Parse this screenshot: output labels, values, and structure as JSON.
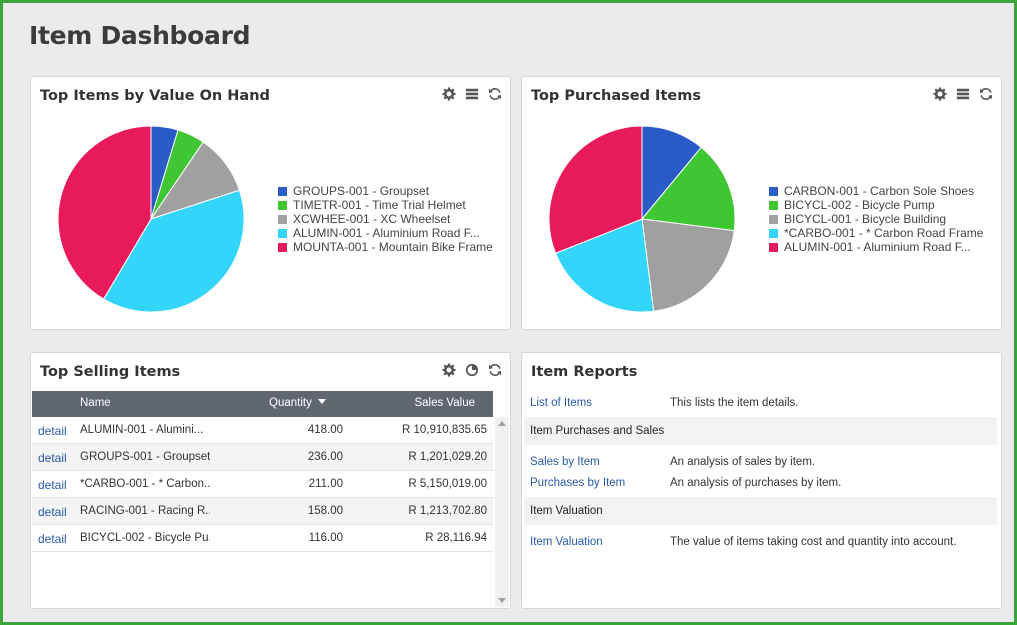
{
  "page": {
    "title": "Item Dashboard"
  },
  "panels": {
    "value_on_hand": {
      "title": "Top Items by Value On Hand",
      "legend": [
        {
          "label": "GROUPS-001 - Groupset",
          "color": "#2a5bc7"
        },
        {
          "label": "TIMETR-001 - Time Trial Helmet",
          "color": "#3ec633"
        },
        {
          "label": "XCWHEE-001 - XC Wheelset",
          "color": "#a0a0a0"
        },
        {
          "label": "ALUMIN-001 - Aluminium Road F...",
          "color": "#33d6fa"
        },
        {
          "label": "MOUNTA-001 - Mountain Bike Frame",
          "color": "#e81a5b"
        }
      ]
    },
    "purchased": {
      "title": "Top Purchased Items",
      "legend": [
        {
          "label": "CARBON-001 - Carbon Sole Shoes",
          "color": "#2a5bc7"
        },
        {
          "label": "BICYCL-002 - Bicycle Pump",
          "color": "#3ec633"
        },
        {
          "label": "BICYCL-001 - Bicycle Building",
          "color": "#a0a0a0"
        },
        {
          "label": "*CARBO-001 - * Carbon Road Frame",
          "color": "#33d6fa"
        },
        {
          "label": "ALUMIN-001 - Aluminium Road F...",
          "color": "#e81a5b"
        }
      ]
    },
    "selling": {
      "title": "Top Selling Items",
      "columns": {
        "name": "Name",
        "quantity": "Quantity",
        "sales_value": "Sales Value"
      },
      "rows": [
        {
          "link": "detail",
          "name": "ALUMIN-001 - Alumini...",
          "quantity": "418.00",
          "sales_value": "R 10,910,835.65"
        },
        {
          "link": "detail",
          "name": "GROUPS-001 - Groupset",
          "quantity": "236.00",
          "sales_value": "R 1,201,029.20"
        },
        {
          "link": "detail",
          "name": "*CARBO-001 - * Carbon...",
          "quantity": "211.00",
          "sales_value": "R 5,150,019.00"
        },
        {
          "link": "detail",
          "name": "RACING-001 - Racing R...",
          "quantity": "158.00",
          "sales_value": "R 1,213,702.80"
        },
        {
          "link": "detail",
          "name": "BICYCL-002 - Bicycle Pu...",
          "quantity": "116.00",
          "sales_value": "R 28,116.94"
        }
      ]
    },
    "reports": {
      "title": "Item Reports",
      "list_link": "List of Items",
      "list_desc": "This lists the item details.",
      "section1": "Item Purchases and Sales",
      "sales_link": "Sales by Item",
      "sales_desc": "An analysis of sales by item.",
      "purch_link": "Purchases by Item",
      "purch_desc": "An analysis of purchases by item.",
      "section2": "Item Valuation",
      "val_link": "Item Valuation",
      "val_desc": "The value of items taking cost and quantity into account."
    }
  },
  "chart_data": [
    {
      "type": "pie",
      "title": "Top Items by Value On Hand",
      "labels": [
        "GROUPS-001 - Groupset",
        "TIMETR-001 - Time Trial Helmet",
        "XCWHEE-001 - XC Wheelset",
        "ALUMIN-001 - Aluminium Road F...",
        "MOUNTA-001 - Mountain Bike Frame"
      ],
      "values": [
        4.7,
        4.8,
        10.5,
        38.5,
        41.5
      ],
      "colors": [
        "#2a5bc7",
        "#3ec633",
        "#a0a0a0",
        "#33d6fa",
        "#e81a5b"
      ]
    },
    {
      "type": "pie",
      "title": "Top Purchased Items",
      "labels": [
        "CARBON-001 - Carbon Sole Shoes",
        "BICYCL-002 - Bicycle Pump",
        "BICYCL-001 - Bicycle Building",
        "*CARBO-001 - * Carbon Road Frame",
        "ALUMIN-001 - Aluminium Road F..."
      ],
      "values": [
        11,
        16,
        21,
        21,
        31
      ],
      "colors": [
        "#2a5bc7",
        "#3ec633",
        "#a0a0a0",
        "#33d6fa",
        "#e81a5b"
      ]
    }
  ]
}
